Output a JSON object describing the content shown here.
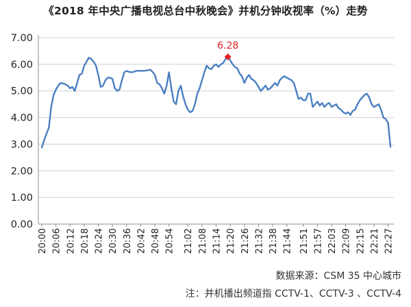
{
  "chart_data": {
    "type": "line",
    "title": "《2018 年中央广播电视总台中秋晚会》并机分钟收视率（%）走势",
    "xlabel": "",
    "ylabel": "",
    "ylim": [
      0,
      7
    ],
    "yticks": [
      "0.00",
      "1.00",
      "2.00",
      "3.00",
      "4.00",
      "5.00",
      "6.00",
      "7.00"
    ],
    "grid": "horizontal",
    "legend": "none",
    "line_color": "#4a7ec2",
    "peak_color": "#e02020",
    "peak": {
      "x": "21:19",
      "y": 6.28,
      "label": "6.28"
    },
    "xticks": [
      "20:00",
      "20:06",
      "20:12",
      "20:18",
      "20:24",
      "20:30",
      "20:36",
      "20:42",
      "20:48",
      "20:54",
      "21:02",
      "21:08",
      "21:14",
      "21:20",
      "21:26",
      "21:32",
      "21:38",
      "21:44",
      "21:51",
      "21:57",
      "22:03",
      "22:09",
      "22:15",
      "22:21",
      "22:27"
    ],
    "x": [
      "20:00",
      "20:01",
      "20:02",
      "20:03",
      "20:04",
      "20:05",
      "20:06",
      "20:07",
      "20:08",
      "20:09",
      "20:10",
      "20:11",
      "20:12",
      "20:13",
      "20:14",
      "20:15",
      "20:16",
      "20:17",
      "20:18",
      "20:19",
      "20:20",
      "20:21",
      "20:22",
      "20:23",
      "20:24",
      "20:25",
      "20:26",
      "20:27",
      "20:28",
      "20:29",
      "20:30",
      "20:31",
      "20:32",
      "20:33",
      "20:34",
      "20:35",
      "20:36",
      "20:37",
      "20:38",
      "20:39",
      "20:40",
      "20:41",
      "20:42",
      "20:43",
      "20:44",
      "20:45",
      "20:46",
      "20:47",
      "20:48",
      "20:49",
      "20:50",
      "20:51",
      "20:52",
      "20:53",
      "20:54",
      "20:55",
      "20:56",
      "20:57",
      "20:58",
      "20:59",
      "21:00",
      "21:01",
      "21:02",
      "21:03",
      "21:04",
      "21:05",
      "21:06",
      "21:07",
      "21:08",
      "21:09",
      "21:10",
      "21:11",
      "21:12",
      "21:13",
      "21:14",
      "21:15",
      "21:16",
      "21:17",
      "21:18",
      "21:19",
      "21:20",
      "21:21",
      "21:22",
      "21:23",
      "21:24",
      "21:25",
      "21:26",
      "21:27",
      "21:28",
      "21:29",
      "21:30",
      "21:31",
      "21:32",
      "21:33",
      "21:34",
      "21:35",
      "21:36",
      "21:37",
      "21:38",
      "21:39",
      "21:40",
      "21:41",
      "21:42",
      "21:43",
      "21:44",
      "21:45",
      "21:46",
      "21:47",
      "21:48",
      "21:49",
      "21:50",
      "21:51",
      "21:52",
      "21:53",
      "21:54",
      "21:55",
      "21:56",
      "21:57",
      "21:58",
      "21:59",
      "22:00",
      "22:01",
      "22:02",
      "22:03",
      "22:04",
      "22:05",
      "22:06",
      "22:07",
      "22:08",
      "22:09",
      "22:10",
      "22:11",
      "22:12",
      "22:13",
      "22:14",
      "22:15",
      "22:16",
      "22:17",
      "22:18",
      "22:19",
      "22:20",
      "22:21",
      "22:22",
      "22:23",
      "22:24",
      "22:25",
      "22:26",
      "22:27",
      "22:28"
    ],
    "series": [
      {
        "values": [
          2.88,
          3.15,
          3.4,
          3.62,
          4.4,
          4.85,
          5.05,
          5.2,
          5.3,
          5.28,
          5.25,
          5.2,
          5.1,
          5.15,
          5.0,
          5.3,
          5.6,
          5.65,
          5.95,
          6.1,
          6.25,
          6.2,
          6.1,
          5.95,
          5.6,
          5.15,
          5.2,
          5.4,
          5.5,
          5.5,
          5.45,
          5.1,
          5.0,
          5.05,
          5.4,
          5.7,
          5.75,
          5.72,
          5.7,
          5.72,
          5.75,
          5.76,
          5.75,
          5.76,
          5.76,
          5.78,
          5.8,
          5.72,
          5.6,
          5.3,
          5.25,
          5.1,
          4.9,
          5.2,
          5.7,
          5.1,
          4.6,
          4.5,
          5.0,
          5.2,
          4.8,
          4.5,
          4.3,
          4.2,
          4.25,
          4.5,
          4.9,
          5.1,
          5.4,
          5.7,
          5.95,
          5.85,
          5.82,
          5.95,
          6.0,
          5.9,
          6.0,
          6.05,
          6.2,
          6.28,
          6.15,
          6.0,
          5.9,
          5.85,
          5.65,
          5.55,
          5.3,
          5.5,
          5.6,
          5.45,
          5.4,
          5.3,
          5.15,
          5.0,
          5.1,
          5.2,
          5.05,
          5.1,
          5.2,
          5.3,
          5.2,
          5.4,
          5.5,
          5.55,
          5.5,
          5.45,
          5.4,
          5.3,
          5.0,
          4.7,
          4.75,
          4.65,
          4.65,
          4.9,
          4.9,
          4.4,
          4.5,
          4.6,
          4.45,
          4.55,
          4.4,
          4.5,
          4.55,
          4.4,
          4.45,
          4.5,
          4.35,
          4.3,
          4.2,
          4.15,
          4.2,
          4.1,
          4.25,
          4.3,
          4.5,
          4.65,
          4.75,
          4.85,
          4.9,
          4.75,
          4.5,
          4.4,
          4.45,
          4.5,
          4.3,
          4.0,
          3.95,
          3.8,
          2.9
        ]
      }
    ]
  },
  "source_text": "数据来源：CSM 35 中心城市",
  "note_text": "注：并机播出频道指 CCTV-1、CCTV-3 、CCTV-4"
}
